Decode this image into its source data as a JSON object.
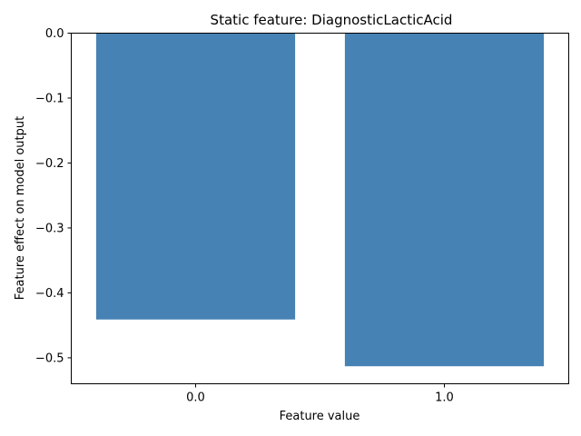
{
  "chart_data": {
    "type": "bar",
    "title": "Static feature: DiagnosticLacticAcid",
    "xlabel": "Feature value",
    "ylabel": "Feature effect on model output",
    "categories": [
      "0.0",
      "1.0"
    ],
    "values": [
      -0.441,
      -0.513
    ],
    "ylim": [
      -0.54,
      0.0
    ],
    "yticks": [
      0.0,
      -0.1,
      -0.2,
      -0.3,
      -0.4,
      -0.5
    ],
    "ytick_labels": [
      "0.0",
      "−0.1",
      "−0.2",
      "−0.3",
      "−0.4",
      "−0.5"
    ],
    "bar_color": "#4682b4",
    "grid": false,
    "legend": "none"
  }
}
